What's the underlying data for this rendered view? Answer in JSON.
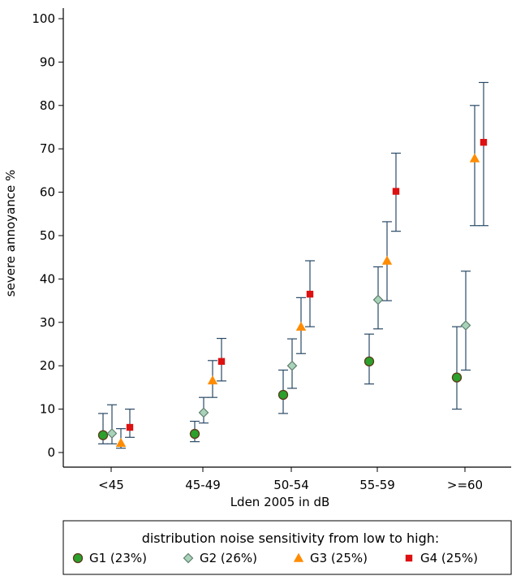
{
  "chart_data": {
    "type": "scatter",
    "xlabel": "Lden 2005 in dB",
    "ylabel": "severe annoyance %",
    "ylim": [
      0,
      100
    ],
    "yticks": [
      0,
      10,
      20,
      30,
      40,
      50,
      60,
      70,
      80,
      90,
      100
    ],
    "categories": [
      "<45",
      "45-49",
      "50-54",
      "55-59",
      ">=60"
    ],
    "grid": false,
    "legend": {
      "title": "distribution noise sensitivity from low to high:",
      "placement": "bottom"
    },
    "series": [
      {
        "name": "G1 (23%)",
        "marker": "circle",
        "color": "#2ca02c",
        "edge": "#5a3a1a",
        "values": [
          4.0,
          4.3,
          13.3,
          21.0,
          17.3
        ],
        "ci_low": [
          2.0,
          2.5,
          9.0,
          15.8,
          10.0
        ],
        "ci_high": [
          9.0,
          7.2,
          19.0,
          27.3,
          29.0
        ]
      },
      {
        "name": "G2 (26%)",
        "marker": "diamond",
        "color": "#a9d3b9",
        "edge": "#5f7f6f",
        "values": [
          4.4,
          9.2,
          20.0,
          35.2,
          29.3
        ],
        "ci_low": [
          2.0,
          6.8,
          14.8,
          28.5,
          19.0
        ],
        "ci_high": [
          11.0,
          12.7,
          26.2,
          42.8,
          41.8
        ]
      },
      {
        "name": "G3 (25%)",
        "marker": "triangle",
        "color": "#ff8c00",
        "edge": "#ff8c00",
        "values": [
          2.2,
          16.6,
          29.0,
          44.2,
          67.8
        ],
        "ci_low": [
          1.0,
          12.7,
          22.8,
          35.0,
          52.3
        ],
        "ci_high": [
          5.5,
          21.2,
          35.7,
          53.2,
          80.0
        ]
      },
      {
        "name": "G4 (25%)",
        "marker": "square",
        "color": "#dd1111",
        "edge": "#dd1111",
        "values": [
          5.8,
          21.0,
          36.5,
          60.2,
          71.5
        ],
        "ci_low": [
          3.5,
          16.5,
          29.0,
          51.0,
          52.3
        ],
        "ci_high": [
          10.0,
          26.3,
          44.2,
          69.0,
          85.3
        ]
      }
    ]
  },
  "colors": {
    "errorbar": "#2a4a66",
    "axis": "#000000"
  }
}
